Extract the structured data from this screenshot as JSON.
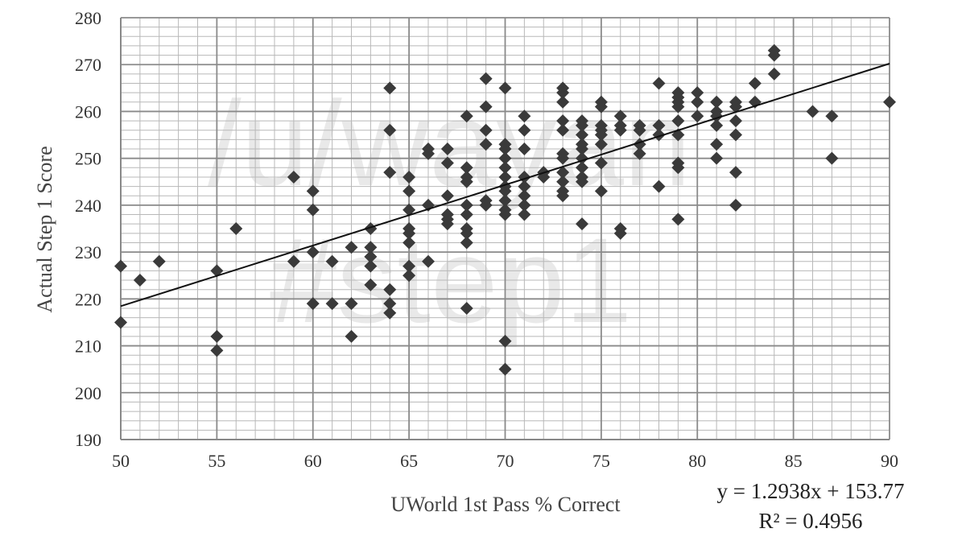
{
  "watermark": {
    "line1": "/u/wayan",
    "line2": "#step1"
  },
  "trendline": {
    "equation": "y = 1.2938x + 153.77",
    "r_squared": "R² = 0.4956"
  },
  "chart_data": {
    "type": "scatter",
    "title": "",
    "xlabel": "UWorld 1st Pass % Correct",
    "ylabel": "Actual Step 1 Score",
    "xlim": [
      50,
      90
    ],
    "ylim": [
      190,
      280
    ],
    "x_ticks": [
      "50",
      "55",
      "60",
      "65",
      "70",
      "75",
      "80",
      "85",
      "90"
    ],
    "y_ticks": [
      "190",
      "200",
      "210",
      "220",
      "230",
      "240",
      "250",
      "260",
      "270",
      "280"
    ],
    "grid": true,
    "marker": "diamond",
    "marker_color": "#3a3a3a",
    "trendline_fit": {
      "slope": 1.2938,
      "intercept": 153.77
    },
    "points": [
      [
        50,
        227
      ],
      [
        50,
        215
      ],
      [
        51,
        224
      ],
      [
        52,
        228
      ],
      [
        55,
        226
      ],
      [
        55,
        212
      ],
      [
        55,
        209
      ],
      [
        56,
        235
      ],
      [
        59,
        246
      ],
      [
        59,
        228
      ],
      [
        60,
        243
      ],
      [
        60,
        239
      ],
      [
        60,
        230
      ],
      [
        60,
        219
      ],
      [
        61,
        228
      ],
      [
        61,
        219
      ],
      [
        62,
        231
      ],
      [
        62,
        219
      ],
      [
        62,
        212
      ],
      [
        63,
        235
      ],
      [
        63,
        231
      ],
      [
        63,
        229
      ],
      [
        63,
        227
      ],
      [
        63,
        223
      ],
      [
        64,
        265
      ],
      [
        64,
        256
      ],
      [
        64,
        247
      ],
      [
        64,
        222
      ],
      [
        64,
        219
      ],
      [
        64,
        217
      ],
      [
        65,
        246
      ],
      [
        65,
        243
      ],
      [
        65,
        239
      ],
      [
        65,
        235
      ],
      [
        65,
        234
      ],
      [
        65,
        232
      ],
      [
        65,
        227
      ],
      [
        65,
        225
      ],
      [
        66,
        252
      ],
      [
        66,
        251
      ],
      [
        66,
        240
      ],
      [
        66,
        228
      ],
      [
        67,
        252
      ],
      [
        67,
        249
      ],
      [
        67,
        242
      ],
      [
        67,
        238
      ],
      [
        67,
        237
      ],
      [
        67,
        236
      ],
      [
        68,
        259
      ],
      [
        68,
        248
      ],
      [
        68,
        246
      ],
      [
        68,
        245
      ],
      [
        68,
        240
      ],
      [
        68,
        238
      ],
      [
        68,
        235
      ],
      [
        68,
        234
      ],
      [
        68,
        232
      ],
      [
        68,
        218
      ],
      [
        69,
        267
      ],
      [
        69,
        261
      ],
      [
        69,
        256
      ],
      [
        69,
        253
      ],
      [
        69,
        241
      ],
      [
        69,
        240
      ],
      [
        70,
        265
      ],
      [
        70,
        253
      ],
      [
        70,
        252
      ],
      [
        70,
        250
      ],
      [
        70,
        248
      ],
      [
        70,
        246
      ],
      [
        70,
        244
      ],
      [
        70,
        243
      ],
      [
        70,
        241
      ],
      [
        70,
        239
      ],
      [
        70,
        238
      ],
      [
        70,
        211
      ],
      [
        70,
        205
      ],
      [
        71,
        259
      ],
      [
        71,
        256
      ],
      [
        71,
        252
      ],
      [
        71,
        246
      ],
      [
        71,
        244
      ],
      [
        71,
        242
      ],
      [
        71,
        240
      ],
      [
        71,
        238
      ],
      [
        72,
        247
      ],
      [
        72,
        246
      ],
      [
        73,
        265
      ],
      [
        73,
        264
      ],
      [
        73,
        262
      ],
      [
        73,
        258
      ],
      [
        73,
        256
      ],
      [
        73,
        251
      ],
      [
        73,
        250
      ],
      [
        73,
        247
      ],
      [
        73,
        245
      ],
      [
        73,
        243
      ],
      [
        73,
        242
      ],
      [
        74,
        258
      ],
      [
        74,
        257
      ],
      [
        74,
        255
      ],
      [
        74,
        253
      ],
      [
        74,
        252
      ],
      [
        74,
        250
      ],
      [
        74,
        248
      ],
      [
        74,
        246
      ],
      [
        74,
        245
      ],
      [
        74,
        236
      ],
      [
        75,
        262
      ],
      [
        75,
        261
      ],
      [
        75,
        257
      ],
      [
        75,
        256
      ],
      [
        75,
        255
      ],
      [
        75,
        253
      ],
      [
        75,
        249
      ],
      [
        75,
        243
      ],
      [
        76,
        259
      ],
      [
        76,
        257
      ],
      [
        76,
        256
      ],
      [
        76,
        235
      ],
      [
        76,
        234
      ],
      [
        77,
        257
      ],
      [
        77,
        256
      ],
      [
        77,
        253
      ],
      [
        77,
        251
      ],
      [
        78,
        266
      ],
      [
        78,
        257
      ],
      [
        78,
        255
      ],
      [
        78,
        244
      ],
      [
        79,
        264
      ],
      [
        79,
        263
      ],
      [
        79,
        262
      ],
      [
        79,
        261
      ],
      [
        79,
        258
      ],
      [
        79,
        255
      ],
      [
        79,
        249
      ],
      [
        79,
        248
      ],
      [
        79,
        237
      ],
      [
        80,
        264
      ],
      [
        80,
        262
      ],
      [
        80,
        259
      ],
      [
        81,
        262
      ],
      [
        81,
        260
      ],
      [
        81,
        259
      ],
      [
        81,
        257
      ],
      [
        81,
        253
      ],
      [
        81,
        250
      ],
      [
        82,
        262
      ],
      [
        82,
        261
      ],
      [
        82,
        258
      ],
      [
        82,
        255
      ],
      [
        82,
        247
      ],
      [
        82,
        240
      ],
      [
        83,
        266
      ],
      [
        83,
        262
      ],
      [
        84,
        273
      ],
      [
        84,
        272
      ],
      [
        84,
        268
      ],
      [
        86,
        260
      ],
      [
        87,
        259
      ],
      [
        87,
        250
      ],
      [
        90,
        262
      ]
    ]
  }
}
